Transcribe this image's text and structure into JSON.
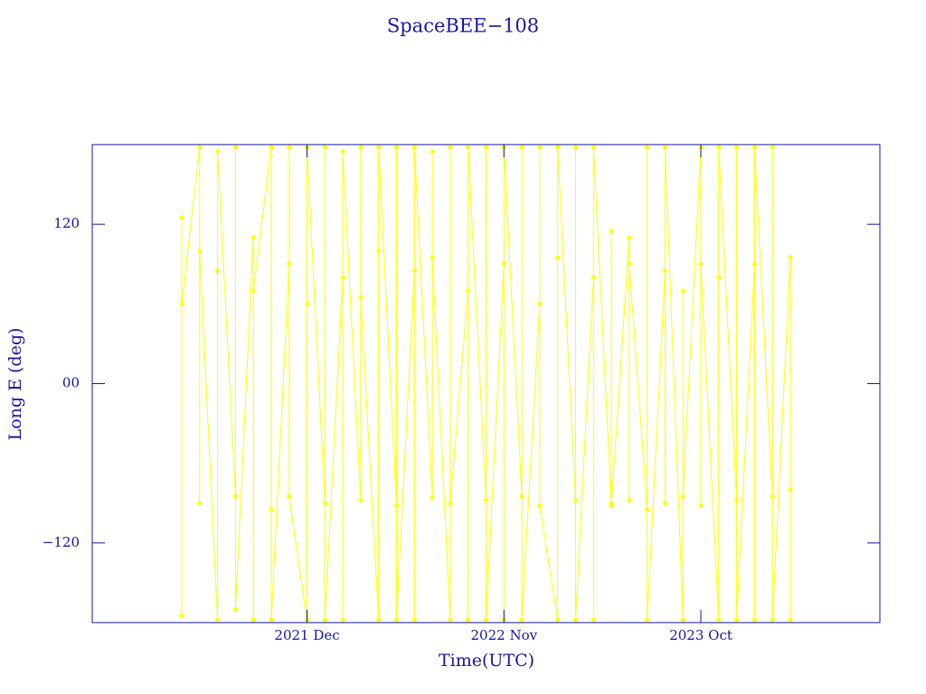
{
  "chart_data": {
    "type": "line",
    "title": "SpaceBEE−108",
    "x_label": "Time(UTC)",
    "y_label": "Long E (deg)",
    "color": "#ffff00",
    "xlim": [
      "2020-12",
      "2024-08"
    ],
    "xticks": [
      {
        "value": "2021-12",
        "label": "2021 Dec"
      },
      {
        "value": "2022-11",
        "label": "2022 Nov"
      },
      {
        "value": "2023-10",
        "label": "2023 Oct"
      }
    ],
    "ylim": [
      -180,
      180
    ],
    "yticks": [
      {
        "value": -120,
        "label": "−120"
      },
      {
        "value": 0,
        "label": "00"
      },
      120
    ],
    "x": [
      "2021-05",
      "2021-05",
      "2021-05",
      "2021-06",
      "2021-06",
      "2021-06",
      "2021-07",
      "2021-07",
      "2021-07",
      "2021-08",
      "2021-08",
      "2021-08",
      "2021-09",
      "2021-09",
      "2021-09",
      "2021-10",
      "2021-10",
      "2021-10",
      "2021-11",
      "2021-11",
      "2021-11",
      "2021-12",
      "2021-12",
      "2021-12",
      "2022-01",
      "2022-01",
      "2022-01",
      "2022-02",
      "2022-02",
      "2022-02",
      "2022-03",
      "2022-03",
      "2022-03",
      "2022-04",
      "2022-04",
      "2022-04",
      "2022-05",
      "2022-05",
      "2022-05",
      "2022-06",
      "2022-06",
      "2022-06",
      "2022-07",
      "2022-07",
      "2022-07",
      "2022-08",
      "2022-08",
      "2022-08",
      "2022-09",
      "2022-09",
      "2022-09",
      "2022-10",
      "2022-10",
      "2022-10",
      "2022-11",
      "2022-11",
      "2022-11",
      "2022-12",
      "2022-12",
      "2022-12",
      "2023-01",
      "2023-01",
      "2023-01",
      "2023-02",
      "2023-02",
      "2023-02",
      "2023-03",
      "2023-03",
      "2023-03",
      "2023-04",
      "2023-04",
      "2023-04",
      "2023-05",
      "2023-05",
      "2023-05",
      "2023-06",
      "2023-06",
      "2023-06",
      "2023-07",
      "2023-07",
      "2023-07",
      "2023-08",
      "2023-08",
      "2023-08",
      "2023-09",
      "2023-09",
      "2023-09",
      "2023-10",
      "2023-10",
      "2023-10",
      "2023-11",
      "2023-11",
      "2023-11",
      "2023-12",
      "2023-12",
      "2023-12",
      "2024-01",
      "2024-01",
      "2024-01",
      "2024-02",
      "2024-02",
      "2024-02",
      "2024-03",
      "2024-03",
      "2024-03"
    ],
    "values": [
      125,
      -175,
      60,
      178,
      -90,
      100,
      -178,
      85,
      175,
      -85,
      178,
      -170,
      110,
      -178,
      70,
      178,
      -95,
      -178,
      90,
      178,
      -85,
      -178,
      60,
      178,
      -90,
      178,
      -178,
      80,
      -178,
      175,
      -88,
      178,
      65,
      -178,
      100,
      178,
      -92,
      178,
      -178,
      85,
      -178,
      178,
      -86,
      175,
      95,
      -178,
      178,
      -90,
      70,
      -178,
      178,
      -88,
      178,
      -178,
      90,
      -178,
      178,
      -85,
      178,
      -178,
      60,
      178,
      -92,
      -178,
      95,
      178,
      -88,
      178,
      -178,
      80,
      -178,
      178,
      -90,
      115,
      -92,
      110,
      -88,
      90,
      -95,
      178,
      -178,
      85,
      -90,
      178,
      -178,
      70,
      -85,
      178,
      -92,
      90,
      -178,
      80,
      178,
      -88,
      178,
      -178,
      90,
      -178,
      178,
      -85,
      178,
      -178,
      95,
      -178,
      -80
    ]
  }
}
